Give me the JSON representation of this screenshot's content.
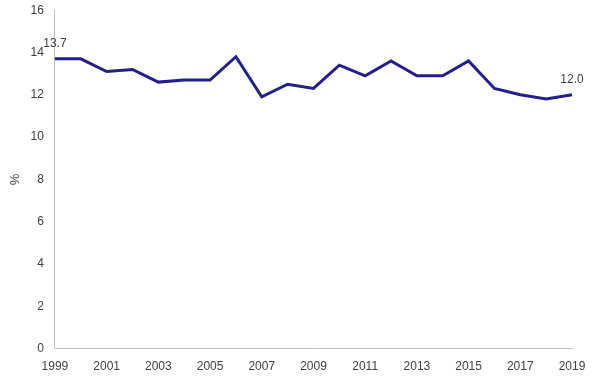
{
  "chart_data": {
    "type": "line",
    "y_label": "%",
    "categories": [
      "1999",
      null,
      "2001",
      null,
      "2003",
      null,
      "2005",
      null,
      "2007",
      null,
      "2009",
      null,
      "2011",
      null,
      "2013",
      null,
      "2015",
      null,
      "2017",
      null,
      "2019"
    ],
    "values": [
      13.7,
      13.7,
      13.1,
      13.2,
      12.6,
      12.7,
      12.7,
      13.8,
      11.9,
      12.5,
      12.3,
      13.4,
      12.9,
      13.6,
      12.9,
      12.9,
      13.6,
      12.3,
      12.0,
      11.8,
      12.0
    ],
    "value_labels": [
      "13.7",
      null,
      null,
      null,
      null,
      null,
      null,
      null,
      null,
      null,
      null,
      null,
      null,
      null,
      null,
      null,
      null,
      null,
      null,
      null,
      "12.0"
    ],
    "data_labels": true,
    "color": "#231f8c",
    "ylim": [
      0,
      16
    ],
    "yticks": [
      0,
      2,
      4,
      6,
      8,
      10,
      12,
      14,
      16
    ],
    "grid": false
  }
}
